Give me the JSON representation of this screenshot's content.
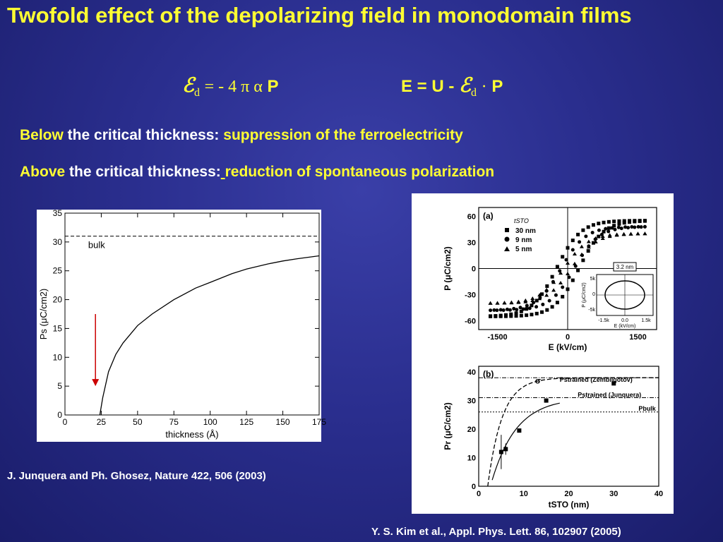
{
  "title": "Twofold effect of the depolarizing field in monodomain films",
  "formula_left": {
    "symbol": "ℰ",
    "sub": "d",
    "rhs": "= - 4 π α",
    "var": "P"
  },
  "formula_right": {
    "lhs": "E = U -",
    "symbol": "ℰ",
    "sub": "d",
    "dot": "·",
    "var": "P"
  },
  "lines": [
    {
      "pre": " ",
      "keyword": "Below",
      "mid": " the critical thickness: ",
      "post": "suppression of the ferroelectricity"
    },
    {
      "pre": " ",
      "keyword": "Above",
      "mid": " the critical thickness:",
      "sep": " ",
      "post": "reduction of spontaneous polarization"
    }
  ],
  "citations": {
    "left": "J. Junquera and Ph. Ghosez, Nature 422, 506 (2003)",
    "right": "Y. S. Kim et al., Appl. Phys. Lett. 86, 102907 (2005)"
  },
  "chart_data": [
    {
      "type": "line",
      "xlabel": "thickness (Å)",
      "ylabel": "Ps (μC/cm2)",
      "xlim": [
        0,
        175
      ],
      "ylim": [
        0,
        35
      ],
      "xticks": [
        0,
        25,
        50,
        75,
        100,
        125,
        150,
        175
      ],
      "yticks": [
        0,
        5,
        10,
        15,
        20,
        25,
        30,
        35
      ],
      "annotation": "bulk",
      "bulk_value": 31,
      "series": [
        {
          "x": [
            24,
            26,
            30,
            35,
            40,
            50,
            60,
            75,
            90,
            100,
            115,
            125,
            140,
            150,
            160,
            175
          ],
          "y": [
            0,
            3,
            7.5,
            10.5,
            12.5,
            15.5,
            17.5,
            20,
            22,
            23,
            24.5,
            25.3,
            26.2,
            26.7,
            27.1,
            27.6
          ]
        }
      ],
      "arrow": {
        "x": 21,
        "y_from": 17.5,
        "y_to": 5,
        "color": "#cc0000"
      }
    },
    {
      "type": "line",
      "panel": "(a)",
      "xlabel": "E (kV/cm)",
      "ylabel": "P (μC/cm2)",
      "xlim": [
        -1900,
        1900
      ],
      "ylim": [
        -70,
        70
      ],
      "xticks": [
        -1500,
        0,
        1500
      ],
      "yticks": [
        -60,
        -30,
        0,
        30,
        60
      ],
      "legend_title": "tSTO",
      "legend": [
        {
          "marker": "square",
          "label": "30 nm"
        },
        {
          "marker": "circle",
          "label": "9 nm"
        },
        {
          "marker": "triangle",
          "label": "5 nm"
        }
      ],
      "inset": {
        "label": "3.2 nm",
        "xlabel": "E (kV/cm)",
        "ylabel": "P (μC/cm2)",
        "xticks": [
          "-1.5k",
          "0.0",
          "1.5k"
        ],
        "yticks": [
          "5k",
          "0",
          "-5k"
        ]
      }
    },
    {
      "type": "scatter",
      "panel": "(b)",
      "xlabel": "tSTO (nm)",
      "ylabel": "Pr (μC/cm2)",
      "xlim": [
        0,
        40
      ],
      "ylim": [
        0,
        42
      ],
      "xticks": [
        0,
        10,
        20,
        30,
        40
      ],
      "yticks": [
        0,
        10,
        20,
        30,
        40
      ],
      "labels": {
        "p_z": "Pstrained (Zembilgotov)",
        "p_j": "Pstrained (Junquera)",
        "p_b": "Pbulk",
        "sigma": "σ"
      },
      "levels": {
        "zembilgotov": 38,
        "junquera": 31,
        "bulk": 26
      },
      "points": [
        {
          "x": 5,
          "y": 12,
          "err": 6
        },
        {
          "x": 6,
          "y": 13,
          "err": 2
        },
        {
          "x": 9,
          "y": 19.5,
          "err": 0
        },
        {
          "x": 15,
          "y": 30,
          "err": 0
        },
        {
          "x": 30,
          "y": 36,
          "err": 0
        }
      ]
    }
  ]
}
